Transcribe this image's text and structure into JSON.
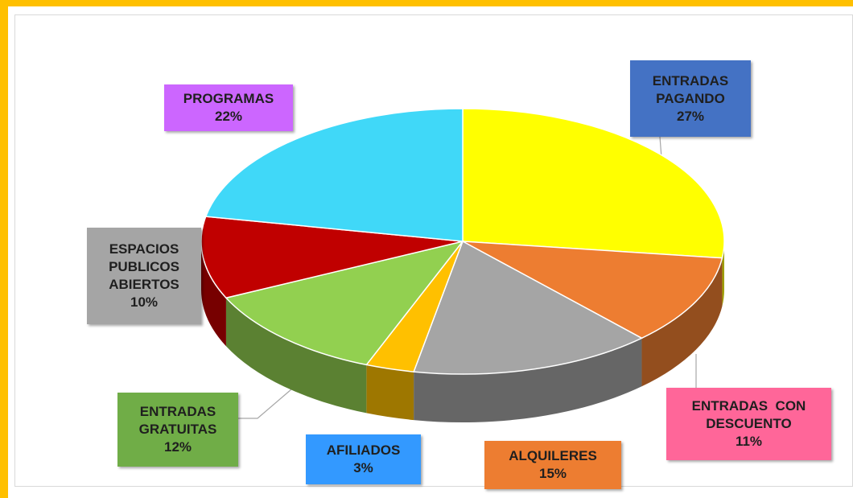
{
  "chart_data": {
    "type": "pie",
    "categories": [
      "ENTRADAS PAGANDO",
      "ENTRADAS  CON DESCUENTO",
      "ALQUILERES",
      "AFILIADOS",
      "ENTRADAS GRATUITAS",
      "ESPACIOS PUBLICOS ABIERTOS",
      "PROGRAMAS"
    ],
    "values": [
      27,
      11,
      15,
      3,
      12,
      10,
      22
    ],
    "value_labels": [
      "27%",
      "11%",
      "15%",
      "3%",
      "12%",
      "10%",
      "22%"
    ],
    "colors": [
      "#ffff00",
      "#ed7d31",
      "#a5a5a5",
      "#ffc000",
      "#92d050",
      "#c00000",
      "#40d8f8"
    ],
    "label_colors": [
      "#4472c4",
      "#ff6699",
      "#ed7d31",
      "#3399ff",
      "#70ad47",
      "#a5a5a5",
      "#cc66ff"
    ]
  }
}
